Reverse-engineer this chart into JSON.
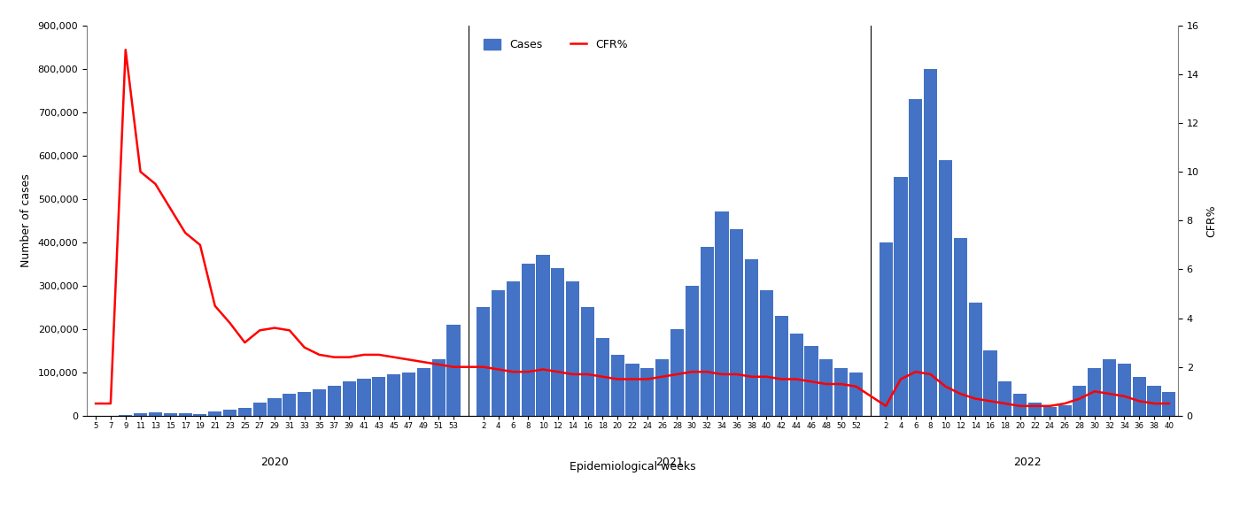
{
  "title": "",
  "xlabel": "Epidemiological weeks",
  "ylabel_left": "Number of cases",
  "ylabel_right": "CFR%",
  "bar_color": "#4472C4",
  "line_color": "#FF0000",
  "background_color": "#FFFFFF",
  "ylim_left": [
    0,
    900000
  ],
  "ylim_right": [
    0,
    16
  ],
  "yticks_left": [
    0,
    100000,
    200000,
    300000,
    400000,
    500000,
    600000,
    700000,
    800000,
    900000
  ],
  "yticks_right": [
    0,
    2,
    4,
    6,
    8,
    10,
    12,
    14,
    16
  ],
  "legend_cases_label": "Cases",
  "legend_cfr_label": "CFR%",
  "seg2020_weeks": [
    5,
    7,
    9,
    11,
    13,
    15,
    17,
    19,
    21,
    23,
    25,
    27,
    29,
    31,
    33,
    35,
    37,
    39,
    41,
    43,
    45,
    47,
    49,
    51,
    53
  ],
  "seg2020_cases": [
    200,
    500,
    2000,
    5000,
    8000,
    6000,
    5000,
    4000,
    10000,
    15000,
    18000,
    30000,
    40000,
    50000,
    55000,
    60000,
    70000,
    80000,
    85000,
    90000,
    95000,
    100000,
    110000,
    130000,
    210000
  ],
  "seg2020_cfr": [
    0.5,
    0.5,
    15.0,
    10.0,
    9.5,
    8.5,
    7.5,
    7.0,
    4.5,
    3.8,
    3.0,
    3.5,
    3.6,
    3.5,
    2.8,
    2.5,
    2.4,
    2.4,
    2.5,
    2.5,
    2.4,
    2.3,
    2.2,
    2.1,
    2.0
  ],
  "seg2021_weeks": [
    2,
    4,
    6,
    8,
    10,
    12,
    14,
    16,
    18,
    20,
    22,
    24,
    26,
    28,
    30,
    32,
    34,
    36,
    38,
    40,
    42,
    44,
    46,
    48,
    50,
    52
  ],
  "seg2021_cases": [
    250000,
    290000,
    310000,
    350000,
    370000,
    340000,
    310000,
    250000,
    180000,
    140000,
    120000,
    110000,
    130000,
    200000,
    300000,
    390000,
    470000,
    430000,
    360000,
    290000,
    230000,
    190000,
    160000,
    130000,
    110000,
    100000
  ],
  "seg2021_cfr": [
    2.0,
    1.9,
    1.8,
    1.8,
    1.9,
    1.8,
    1.7,
    1.7,
    1.6,
    1.5,
    1.5,
    1.5,
    1.6,
    1.7,
    1.8,
    1.8,
    1.7,
    1.7,
    1.6,
    1.6,
    1.5,
    1.5,
    1.4,
    1.3,
    1.3,
    1.2
  ],
  "seg2022_weeks": [
    2,
    4,
    6,
    8,
    10,
    12,
    14,
    16,
    18,
    20,
    22,
    24,
    26,
    28,
    30,
    32,
    34,
    36,
    38,
    40
  ],
  "seg2022_cases": [
    400000,
    550000,
    730000,
    800000,
    590000,
    410000,
    260000,
    150000,
    80000,
    50000,
    30000,
    20000,
    25000,
    70000,
    110000,
    130000,
    120000,
    90000,
    70000,
    55000
  ],
  "seg2022_cfr": [
    0.4,
    1.5,
    1.8,
    1.7,
    1.2,
    0.9,
    0.7,
    0.6,
    0.5,
    0.4,
    0.4,
    0.4,
    0.5,
    0.7,
    1.0,
    0.9,
    0.8,
    0.6,
    0.5,
    0.5
  ]
}
